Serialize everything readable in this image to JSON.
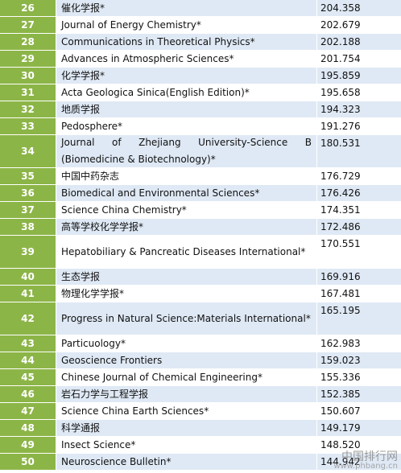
{
  "rows": [
    {
      "rank": "26",
      "name": "催化学报*",
      "score": "204.358"
    },
    {
      "rank": "27",
      "name": "Journal of Energy Chemistry*",
      "score": "202.679"
    },
    {
      "rank": "28",
      "name": "Communications in Theoretical Physics*",
      "score": "202.188"
    },
    {
      "rank": "29",
      "name": "Advances in Atmospheric Sciences*",
      "score": "201.754"
    },
    {
      "rank": "30",
      "name": "化学学报*",
      "score": "195.859"
    },
    {
      "rank": "31",
      "name": "Acta Geologica Sinica(English Edition)*",
      "score": "195.658"
    },
    {
      "rank": "32",
      "name": "地质学报",
      "score": "194.323"
    },
    {
      "rank": "33",
      "name": "Pedosphere*",
      "score": "191.276"
    },
    {
      "rank": "34",
      "name": "Journal of Zhejiang University-Science B (Biomedicine & Biotechnology)*",
      "score": "180.531"
    },
    {
      "rank": "35",
      "name": "中国中药杂志",
      "score": "176.729"
    },
    {
      "rank": "36",
      "name": "Biomedical and Environmental Sciences*",
      "score": "176.426"
    },
    {
      "rank": "37",
      "name": "Science China Chemistry*",
      "score": "174.351"
    },
    {
      "rank": "38",
      "name": "高等学校化学学报*",
      "score": "172.486"
    },
    {
      "rank": "39",
      "name": "Hepatobiliary & Pancreatic Diseases International*",
      "score": "170.551"
    },
    {
      "rank": "40",
      "name": "生态学报",
      "score": "169.916"
    },
    {
      "rank": "41",
      "name": "物理化学学报*",
      "score": "167.481"
    },
    {
      "rank": "42",
      "name": "Progress in Natural Science:Materials International*",
      "score": "165.195"
    },
    {
      "rank": "43",
      "name": "Particuology*",
      "score": "162.983"
    },
    {
      "rank": "44",
      "name": "Geoscience Frontiers",
      "score": "159.023"
    },
    {
      "rank": "45",
      "name": "Chinese Journal of Chemical Engineering*",
      "score": "155.336"
    },
    {
      "rank": "46",
      "name": "岩石力学与工程学报",
      "score": "152.385"
    },
    {
      "rank": "47",
      "name": "Science China Earth Sciences*",
      "score": "150.607"
    },
    {
      "rank": "48",
      "name": "科学通报",
      "score": "149.179"
    },
    {
      "rank": "49",
      "name": "Insect Science*",
      "score": "148.520"
    },
    {
      "rank": "50",
      "name": "Neuroscience Bulletin*",
      "score": "144.942"
    }
  ],
  "watermark": {
    "line1": "中国排行网",
    "line2": "www.phbang.cn"
  }
}
